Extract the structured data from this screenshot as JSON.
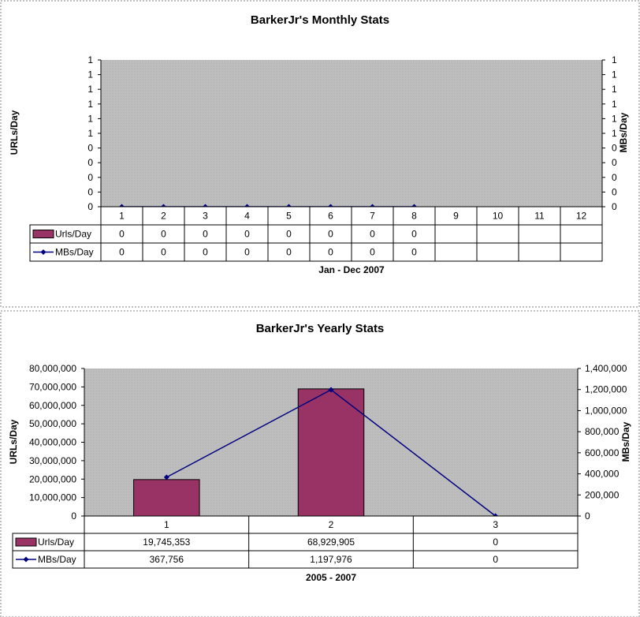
{
  "colors": {
    "plot_bg": "#c0c0c0",
    "bar_fill": "#993366",
    "line": "#000080",
    "border": "#808080"
  },
  "chart_data": [
    {
      "type": "bar",
      "title": "BarkerJr's Monthly Stats",
      "xlabel": "Jan - Dec 2007",
      "ylabel": "URLs/Day",
      "y2label": "MBs/Day",
      "categories": [
        "1",
        "2",
        "3",
        "4",
        "5",
        "6",
        "7",
        "8",
        "9",
        "10",
        "11",
        "12"
      ],
      "left_ticks": [
        "0",
        "0",
        "0",
        "0",
        "0",
        "1",
        "1",
        "1",
        "1",
        "1",
        "1"
      ],
      "right_ticks": [
        "0",
        "0",
        "0",
        "0",
        "0",
        "1",
        "1",
        "1",
        "1",
        "1",
        "1"
      ],
      "ylim": [
        0,
        1
      ],
      "y2lim": [
        0,
        1
      ],
      "series": [
        {
          "name": "Urls/Day",
          "type": "bar",
          "axis": "left",
          "values": [
            0,
            0,
            0,
            0,
            0,
            0,
            0,
            0,
            null,
            null,
            null,
            null
          ],
          "labels": [
            "0",
            "0",
            "0",
            "0",
            "0",
            "0",
            "0",
            "0",
            "",
            "",
            "",
            ""
          ]
        },
        {
          "name": "MBs/Day",
          "type": "line",
          "axis": "right",
          "values": [
            0,
            0,
            0,
            0,
            0,
            0,
            0,
            0,
            null,
            null,
            null,
            null
          ],
          "labels": [
            "0",
            "0",
            "0",
            "0",
            "0",
            "0",
            "0",
            "0",
            "",
            "",
            "",
            ""
          ]
        }
      ],
      "legend": "table"
    },
    {
      "type": "bar",
      "title": "BarkerJr's Yearly Stats",
      "xlabel": "2005 - 2007",
      "ylabel": "URLs/Day",
      "y2label": "MBs/Day",
      "categories": [
        "1",
        "2",
        "3"
      ],
      "left_ticks": [
        "0",
        "10,000,000",
        "20,000,000",
        "30,000,000",
        "40,000,000",
        "50,000,000",
        "60,000,000",
        "70,000,000",
        "80,000,000"
      ],
      "right_ticks": [
        "0",
        "200,000",
        "400,000",
        "600,000",
        "800,000",
        "1,000,000",
        "1,200,000",
        "1,400,000"
      ],
      "ylim": [
        0,
        80000000
      ],
      "y2lim": [
        0,
        1400000
      ],
      "series": [
        {
          "name": "Urls/Day",
          "type": "bar",
          "axis": "left",
          "values": [
            19745353,
            68929905,
            0
          ],
          "labels": [
            "19,745,353",
            "68,929,905",
            "0"
          ]
        },
        {
          "name": "MBs/Day",
          "type": "line",
          "axis": "right",
          "values": [
            367756,
            1197976,
            0
          ],
          "labels": [
            "367,756",
            "1,197,976",
            "0"
          ]
        }
      ],
      "legend": "table"
    }
  ]
}
